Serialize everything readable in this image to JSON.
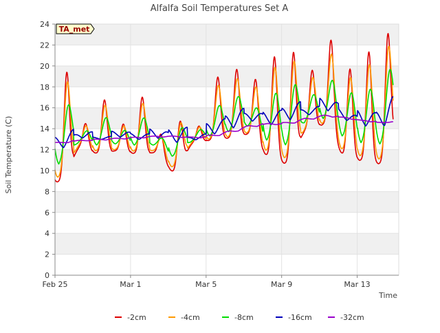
{
  "chart_data": {
    "type": "line",
    "title": "Alfalfa Soil Temperatures Set A",
    "xlabel": "Time",
    "ylabel": "Soil Temperature (C)",
    "site_badge": "TA_met",
    "x_unit": "days since Feb 25",
    "xlim": [
      0,
      18.2
    ],
    "ylim": [
      0,
      24
    ],
    "yticks": [
      0,
      2,
      4,
      6,
      8,
      10,
      12,
      14,
      16,
      18,
      20,
      22,
      24
    ],
    "xticks": [
      {
        "label": "Feb 25",
        "value": 0
      },
      {
        "label": "Mar 1",
        "value": 4
      },
      {
        "label": "Mar 5",
        "value": 8
      },
      {
        "label": "Mar 9",
        "value": 12
      },
      {
        "label": "Mar 13",
        "value": 16
      }
    ],
    "background_bands": true,
    "legend_position": "bottom",
    "series": [
      {
        "name": "-2cm",
        "color": "#dd0000",
        "peak_hour": 0.62,
        "peak_width": 0.14,
        "points": [
          [
            0.35,
            8.9,
            18.8
          ],
          [
            1.35,
            12.2,
            14.6
          ],
          [
            2.35,
            11.6,
            16.7
          ],
          [
            3.35,
            11.9,
            14.5
          ],
          [
            4.35,
            11.6,
            17.0
          ],
          [
            5.35,
            11.7,
            13.8
          ],
          [
            6.35,
            9.8,
            14.2
          ],
          [
            7.35,
            12.6,
            14.2
          ],
          [
            8.35,
            12.9,
            18.9
          ],
          [
            9.35,
            13.1,
            19.6
          ],
          [
            10.35,
            13.5,
            19.1
          ],
          [
            11.35,
            11.3,
            21.0
          ],
          [
            12.35,
            10.6,
            20.7
          ],
          [
            13.35,
            13.9,
            19.5
          ],
          [
            14.35,
            14.4,
            23.0
          ],
          [
            15.35,
            11.4,
            19.8
          ],
          [
            16.35,
            10.9,
            21.4
          ],
          [
            17.35,
            10.6,
            21.7
          ],
          [
            17.9,
            13.4,
            13.4
          ]
        ]
      },
      {
        "name": "-4cm",
        "color": "#ff9900",
        "peak_hour": 0.65,
        "peak_width": 0.16,
        "points": [
          [
            0.35,
            9.3,
            17.8
          ],
          [
            1.35,
            12.4,
            14.4
          ],
          [
            2.35,
            11.8,
            16.2
          ],
          [
            3.35,
            12.0,
            14.3
          ],
          [
            4.35,
            11.8,
            16.4
          ],
          [
            5.35,
            11.9,
            13.6
          ],
          [
            6.35,
            10.2,
            14.0
          ],
          [
            7.35,
            12.7,
            14.1
          ],
          [
            8.35,
            13.0,
            18.1
          ],
          [
            9.35,
            13.2,
            18.7
          ],
          [
            10.35,
            13.6,
            18.4
          ],
          [
            11.35,
            11.7,
            20.0
          ],
          [
            12.35,
            11.1,
            19.8
          ],
          [
            13.35,
            14.0,
            18.8
          ],
          [
            14.35,
            14.5,
            21.7
          ],
          [
            15.35,
            11.8,
            19.0
          ],
          [
            16.35,
            11.3,
            20.2
          ],
          [
            17.35,
            11.0,
            20.1
          ],
          [
            17.9,
            14.0,
            14.0
          ]
        ]
      },
      {
        "name": "-8cm",
        "color": "#00dd00",
        "peak_hour": 0.7,
        "peak_width": 0.2,
        "points": [
          [
            0.35,
            10.4,
            15.6
          ],
          [
            1.35,
            12.7,
            13.9
          ],
          [
            2.35,
            12.3,
            15.0
          ],
          [
            3.35,
            12.5,
            13.9
          ],
          [
            4.35,
            12.3,
            15.0
          ],
          [
            5.35,
            12.4,
            13.4
          ],
          [
            6.35,
            11.2,
            13.6
          ],
          [
            7.35,
            12.8,
            13.8
          ],
          [
            8.35,
            13.2,
            16.1
          ],
          [
            9.35,
            13.6,
            16.9
          ],
          [
            10.35,
            14.2,
            16.4
          ],
          [
            11.35,
            12.6,
            17.5
          ],
          [
            12.35,
            12.2,
            17.5
          ],
          [
            13.35,
            14.6,
            17.2
          ],
          [
            14.35,
            14.8,
            19.1
          ],
          [
            15.35,
            13.0,
            17.6
          ],
          [
            16.35,
            12.4,
            17.8
          ],
          [
            17.35,
            12.3,
            17.7
          ],
          [
            17.9,
            14.9,
            14.9
          ]
        ]
      },
      {
        "name": "-16cm",
        "color": "#0000bb",
        "peak_hour": 0.95,
        "peak_width": 0.3,
        "points": [
          [
            0.35,
            11.8,
            13.2
          ],
          [
            1.35,
            12.9,
            13.7
          ],
          [
            2.35,
            12.9,
            13.2
          ],
          [
            3.35,
            13.0,
            13.8
          ],
          [
            4.35,
            12.8,
            13.5
          ],
          [
            5.35,
            12.8,
            14.0
          ],
          [
            6.35,
            12.3,
            13.8
          ],
          [
            7.35,
            12.8,
            13.3
          ],
          [
            8.35,
            13.1,
            14.6
          ],
          [
            9.35,
            13.6,
            15.4
          ],
          [
            10.35,
            14.4,
            15.7
          ],
          [
            11.35,
            14.0,
            15.5
          ],
          [
            12.35,
            14.4,
            16.1
          ],
          [
            13.35,
            15.1,
            16.0
          ],
          [
            14.35,
            15.3,
            17.0
          ],
          [
            15.35,
            14.5,
            15.7
          ],
          [
            16.35,
            13.8,
            15.6
          ],
          [
            17.35,
            13.7,
            15.6
          ],
          [
            17.9,
            15.2,
            15.2
          ]
        ]
      },
      {
        "name": "-32cm",
        "color": "#9900cc",
        "peak_hour": 1.2,
        "peak_width": 0.4,
        "points": [
          [
            0.35,
            12.5,
            12.7
          ],
          [
            1.35,
            12.8,
            12.9
          ],
          [
            2.35,
            12.8,
            13.0
          ],
          [
            3.35,
            12.9,
            13.1
          ],
          [
            4.35,
            13.0,
            13.2
          ],
          [
            5.35,
            13.1,
            13.3
          ],
          [
            6.35,
            13.1,
            13.3
          ],
          [
            7.35,
            13.0,
            13.2
          ],
          [
            8.35,
            13.1,
            13.4
          ],
          [
            9.35,
            13.5,
            13.8
          ],
          [
            10.35,
            14.0,
            14.3
          ],
          [
            11.35,
            14.3,
            14.5
          ],
          [
            12.35,
            14.3,
            14.6
          ],
          [
            13.35,
            14.7,
            15.0
          ],
          [
            14.35,
            15.0,
            15.3
          ],
          [
            15.35,
            14.9,
            15.1
          ],
          [
            16.35,
            14.6,
            14.8
          ],
          [
            17.35,
            14.5,
            14.6
          ],
          [
            17.9,
            14.6,
            14.6
          ]
        ]
      }
    ]
  }
}
